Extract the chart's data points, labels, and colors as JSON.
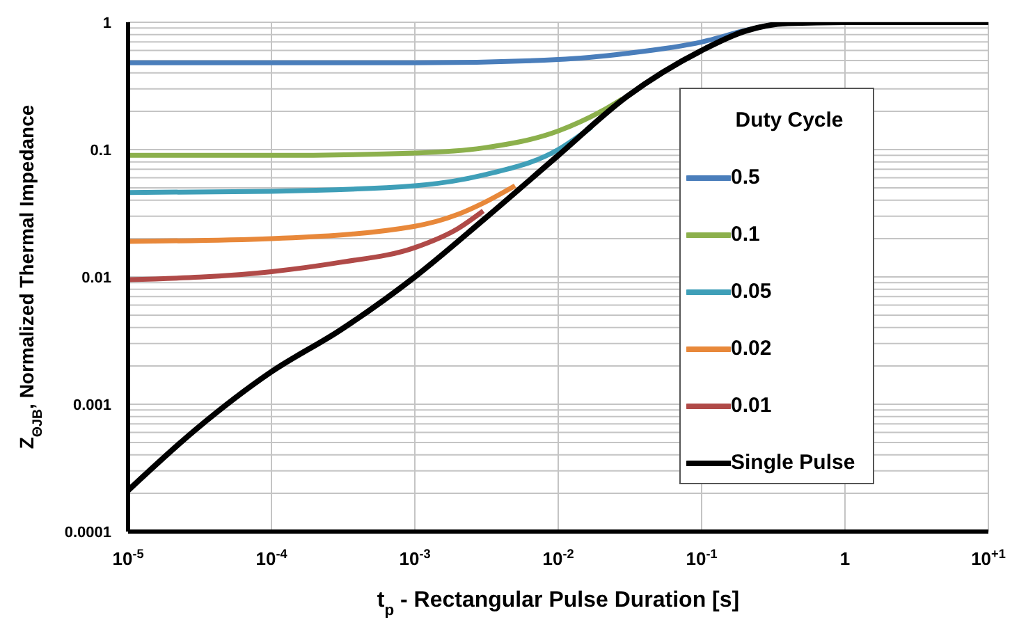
{
  "chart_data": {
    "type": "line",
    "xlabel": "t$_{p}$ -  Rectangular Pulse Duration [s]",
    "ylabel": "Z$_{ΘJB}$, Normalized Thermal Impedance",
    "legend_title": "Duty Cycle",
    "log": "xy",
    "grid": true,
    "legend": "right",
    "marker": "none",
    "line_style": "solid",
    "xlim": [
      1e-05,
      10
    ],
    "ylim": [
      0.0001,
      1
    ],
    "xticks": [
      {
        "value": 1e-05,
        "label": "10$^{-5}$"
      },
      {
        "value": 0.0001,
        "label": "10$^{-4}$"
      },
      {
        "value": 0.001,
        "label": "10$^{-3}$"
      },
      {
        "value": 0.01,
        "label": "10$^{-2}$"
      },
      {
        "value": 0.1,
        "label": "10$^{-1}$"
      },
      1,
      {
        "value": 10,
        "label": "10$^{+1}$"
      }
    ],
    "yticks": [
      0.0001,
      {
        "value": 0.0002,
        "label": null
      },
      {
        "value": 0.0003,
        "label": null
      },
      {
        "value": 0.0004,
        "label": null
      },
      {
        "value": 0.0005,
        "label": null
      },
      {
        "value": 0.0006,
        "label": null
      },
      {
        "value": 0.0007,
        "label": null
      },
      {
        "value": 0.0008,
        "label": null
      },
      {
        "value": 0.0009,
        "label": null
      },
      0.001,
      {
        "value": 0.002,
        "label": null
      },
      {
        "value": 0.003,
        "label": null
      },
      {
        "value": 0.004,
        "label": null
      },
      {
        "value": 0.005,
        "label": null
      },
      {
        "value": 0.006,
        "label": null
      },
      {
        "value": 0.007,
        "label": null
      },
      {
        "value": 0.008,
        "label": null
      },
      {
        "value": 0.009,
        "label": null
      },
      0.01,
      {
        "value": 0.02,
        "label": null
      },
      {
        "value": 0.03,
        "label": null
      },
      {
        "value": 0.04,
        "label": null
      },
      {
        "value": 0.05,
        "label": null
      },
      {
        "value": 0.06,
        "label": null
      },
      {
        "value": 0.07,
        "label": null
      },
      {
        "value": 0.08,
        "label": null
      },
      {
        "value": 0.09,
        "label": null
      },
      0.1,
      {
        "value": 0.2,
        "label": null
      },
      {
        "value": 0.3,
        "label": null
      },
      {
        "value": 0.4,
        "label": null
      },
      {
        "value": 0.5,
        "label": null
      },
      {
        "value": 0.6,
        "label": null
      },
      {
        "value": 0.7,
        "label": null
      },
      {
        "value": 0.8,
        "label": null
      },
      {
        "value": 0.9,
        "label": null
      },
      1
    ],
    "series": [
      {
        "name": "0.5",
        "color": "#4a7ebb",
        "x": [
          1e-05,
          0.0001,
          0.001,
          0.01,
          0.03,
          0.1,
          0.2,
          0.3
        ],
        "values": [
          0.48,
          0.48,
          0.48,
          0.51,
          0.57,
          0.7,
          0.86,
          0.95
        ]
      },
      {
        "name": "0.1",
        "color": "#8cb04c",
        "x": [
          1e-05,
          0.0001,
          0.001,
          0.003,
          0.01,
          0.02,
          0.028
        ],
        "values": [
          0.09,
          0.09,
          0.094,
          0.103,
          0.14,
          0.2,
          0.25
        ]
      },
      {
        "name": "0.05",
        "color": "#3f9fb8",
        "x": [
          1e-05,
          0.0001,
          0.001,
          0.003,
          0.01,
          0.017
        ],
        "values": [
          0.046,
          0.047,
          0.052,
          0.063,
          0.1,
          0.15
        ]
      },
      {
        "name": "0.02",
        "color": "#e8883a",
        "x": [
          1e-05,
          0.0001,
          0.001,
          0.002,
          0.003,
          0.005
        ],
        "values": [
          0.019,
          0.02,
          0.025,
          0.031,
          0.038,
          0.052
        ]
      },
      {
        "name": "0.01",
        "color": "#b04a48",
        "x": [
          1e-05,
          0.0001,
          0.0003,
          0.001,
          0.002,
          0.003
        ],
        "values": [
          0.0095,
          0.011,
          0.013,
          0.017,
          0.024,
          0.033
        ]
      },
      {
        "name": "Single Pulse",
        "color": "#000000",
        "x": [
          1e-05,
          3e-05,
          0.0001,
          0.0003,
          0.001,
          0.003,
          0.01,
          0.03,
          0.1,
          0.2,
          0.4,
          1,
          10
        ],
        "values": [
          0.00021,
          0.00064,
          0.0018,
          0.0038,
          0.01,
          0.028,
          0.09,
          0.26,
          0.6,
          0.85,
          0.98,
          1,
          1
        ]
      }
    ]
  }
}
